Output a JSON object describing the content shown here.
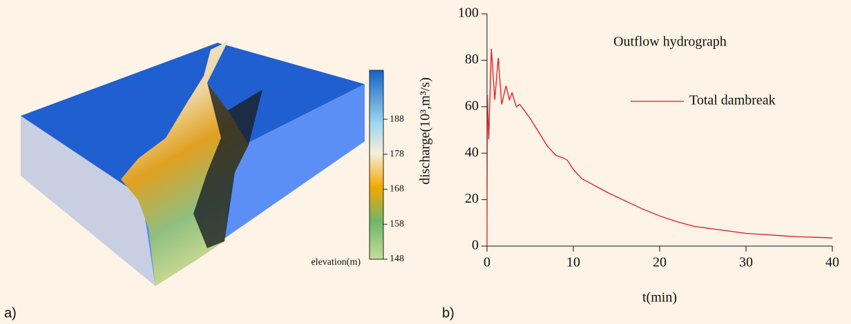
{
  "panels": [
    "a)",
    "b)"
  ],
  "colorbar": {
    "label": "elevation(m)",
    "lim": [
      148,
      202
    ],
    "ticks": [
      148,
      158,
      168,
      178,
      188
    ]
  },
  "chart_data": {
    "type": "line",
    "annotation": "Outflow hydrograph",
    "x_label": "t(min)",
    "y_label": "discharge(10³,m³/s)",
    "xlim": [
      0,
      40
    ],
    "xticks": [
      0,
      10,
      20,
      30,
      40
    ],
    "ylim": [
      0,
      100
    ],
    "yticks": [
      0,
      20,
      40,
      60,
      80,
      100
    ],
    "legend": "upper right",
    "series": [
      {
        "name": "Total dambreak",
        "color": "#e8141c",
        "x": [
          0,
          0.05,
          0.2,
          0.5,
          0.9,
          1.3,
          1.7,
          2.2,
          2.6,
          2.9,
          3.4,
          3.8,
          5,
          6,
          7,
          8,
          8.8,
          9.3,
          10,
          11,
          12,
          14,
          16,
          18,
          20,
          22,
          24,
          26,
          28,
          30,
          32,
          34,
          36,
          38,
          40
        ],
        "values": [
          0,
          65,
          46,
          85,
          63,
          81,
          61,
          69,
          63,
          66,
          60,
          61,
          55,
          49,
          43,
          39,
          38,
          37,
          33,
          29,
          27,
          23,
          19.5,
          16,
          13,
          10.5,
          8.5,
          7.5,
          6.5,
          5.5,
          5,
          4.5,
          4,
          3.8,
          3.5
        ]
      }
    ]
  }
}
